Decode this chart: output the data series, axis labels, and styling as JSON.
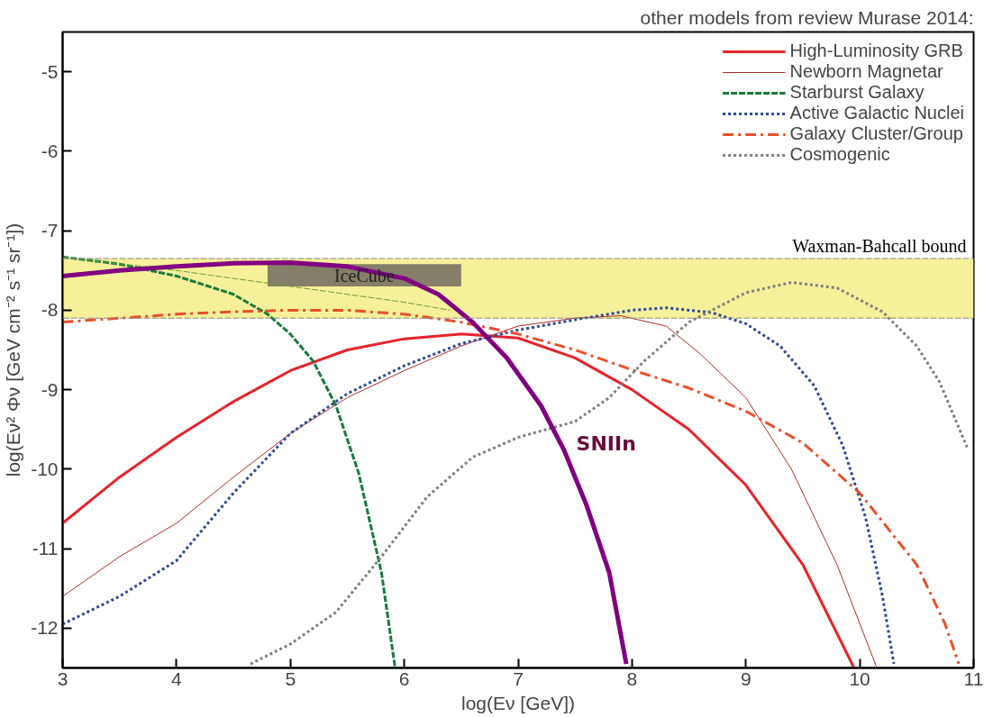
{
  "chart_data": {
    "type": "line",
    "xlabel": "log(Eν [GeV])",
    "ylabel": "log(Eν² Φν [GeV cm⁻² s⁻¹ sr⁻¹])",
    "xlim": [
      3,
      11
    ],
    "xticks": [
      3,
      4,
      5,
      6,
      7,
      8,
      9,
      10,
      11
    ],
    "ylim": [
      -12.5,
      -4.5
    ],
    "yticks": [
      -5,
      -6,
      -7,
      -8,
      -9,
      -10,
      -11,
      -12
    ],
    "grid": false,
    "legend": "top right",
    "annotations": [
      "other models from review Murase 2014:",
      "SNIIn"
    ],
    "ref_lines": [
      {
        "axis": "y",
        "value": -7.35,
        "color": "#888888",
        "line_style": "dashed"
      },
      {
        "axis": "y",
        "value": -8.1,
        "color": "#888888",
        "line_style": "dashed"
      }
    ],
    "bands": [
      {
        "axis": "y",
        "from": -8.1,
        "to": -7.35,
        "label": "Waxman-Bahcall bound",
        "color": "#f7f09a"
      }
    ],
    "series": [
      {
        "type": "bar",
        "name": "IceCube",
        "color": "#857e68",
        "x": [
          5.65
        ],
        "values": [
          0.28
        ],
        "base": [
          -7.7
        ]
      },
      {
        "name": "High-Luminosity GRB",
        "color": "#e8232a",
        "line_style": "solid",
        "x": [
          3,
          3.5,
          4,
          4.5,
          5,
          5.5,
          6,
          6.5,
          7,
          7.5,
          8,
          8.5,
          9,
          9.5,
          9.95
        ],
        "values": [
          -10.68,
          -10.1,
          -9.6,
          -9.15,
          -8.76,
          -8.5,
          -8.36,
          -8.3,
          -8.35,
          -8.6,
          -9.0,
          -9.5,
          -10.2,
          -11.2,
          -12.5
        ]
      },
      {
        "name": "Newborn Magnetar",
        "color": "#b22a2a",
        "line_style": "solid",
        "x": [
          3,
          3.5,
          4,
          4.5,
          5,
          5.5,
          6,
          6.5,
          7,
          7.5,
          7.9,
          8.3,
          8.6,
          9,
          9.4,
          9.8,
          10.15
        ],
        "values": [
          -11.6,
          -11.1,
          -10.68,
          -10.1,
          -9.55,
          -9.1,
          -8.76,
          -8.45,
          -8.2,
          -8.1,
          -8.07,
          -8.2,
          -8.55,
          -9.1,
          -10.0,
          -11.2,
          -12.5
        ]
      },
      {
        "name": "Starburst Galaxy",
        "color": "#1a7a3e",
        "line_style": "dashed",
        "x": [
          3,
          3.5,
          4,
          4.5,
          4.8,
          5.0,
          5.2,
          5.4,
          5.6,
          5.8,
          5.92
        ],
        "values": [
          -7.33,
          -7.42,
          -7.57,
          -7.8,
          -8.05,
          -8.3,
          -8.64,
          -9.2,
          -10.05,
          -11.3,
          -12.5
        ]
      },
      {
        "color": "#6a9a3a",
        "line_style": "dashed",
        "x": [
          3,
          4,
          5,
          6,
          6.4
        ],
        "values": [
          -7.33,
          -7.5,
          -7.7,
          -7.9,
          -8.0
        ]
      },
      {
        "name": "Active Galactic Nuclei",
        "color": "#2c4a9a",
        "line_style": "dotted",
        "x": [
          3,
          3.5,
          4,
          4.5,
          5,
          5.5,
          6,
          6.5,
          7,
          7.5,
          8,
          8.3,
          8.7,
          9.0,
          9.3,
          9.6,
          9.85,
          10.05,
          10.2,
          10.3
        ],
        "values": [
          -11.95,
          -11.6,
          -11.15,
          -10.3,
          -9.55,
          -9.05,
          -8.7,
          -8.42,
          -8.25,
          -8.12,
          -8.0,
          -7.97,
          -8.03,
          -8.17,
          -8.45,
          -8.95,
          -9.7,
          -10.6,
          -11.6,
          -12.45
        ]
      },
      {
        "name": "Galaxy Cluster/Group",
        "color": "#e8502a",
        "line_style": "dashdot",
        "x": [
          3,
          3.5,
          4,
          4.5,
          5,
          5.5,
          6,
          6.5,
          7,
          7.5,
          8,
          8.5,
          9,
          9.5,
          10,
          10.5,
          10.75,
          10.87
        ],
        "values": [
          -8.15,
          -8.1,
          -8.05,
          -8.02,
          -8.0,
          -8.0,
          -8.05,
          -8.15,
          -8.3,
          -8.5,
          -8.75,
          -8.98,
          -9.27,
          -9.67,
          -10.3,
          -11.2,
          -11.95,
          -12.45
        ]
      },
      {
        "name": "Cosmogenic",
        "color": "#808080",
        "line_style": "dotted",
        "x": [
          4.65,
          5,
          5.4,
          5.8,
          6.2,
          6.6,
          7,
          7.5,
          7.8,
          8.1,
          8.5,
          9,
          9.4,
          9.8,
          10.2,
          10.5,
          10.7,
          10.95
        ],
        "values": [
          -12.45,
          -12.2,
          -11.8,
          -11.1,
          -10.35,
          -9.85,
          -9.6,
          -9.4,
          -9.1,
          -8.65,
          -8.15,
          -7.78,
          -7.65,
          -7.72,
          -8.02,
          -8.45,
          -8.9,
          -9.75
        ]
      },
      {
        "color": "#800080",
        "line_style": "solid",
        "x": [
          3,
          3.5,
          4,
          4.5,
          5,
          5.5,
          6,
          6.3,
          6.6,
          6.9,
          7.2,
          7.4,
          7.6,
          7.8,
          7.95
        ],
        "values": [
          -7.57,
          -7.5,
          -7.45,
          -7.41,
          -7.4,
          -7.45,
          -7.6,
          -7.8,
          -8.15,
          -8.6,
          -9.2,
          -9.75,
          -10.45,
          -11.3,
          -12.45
        ]
      }
    ]
  }
}
